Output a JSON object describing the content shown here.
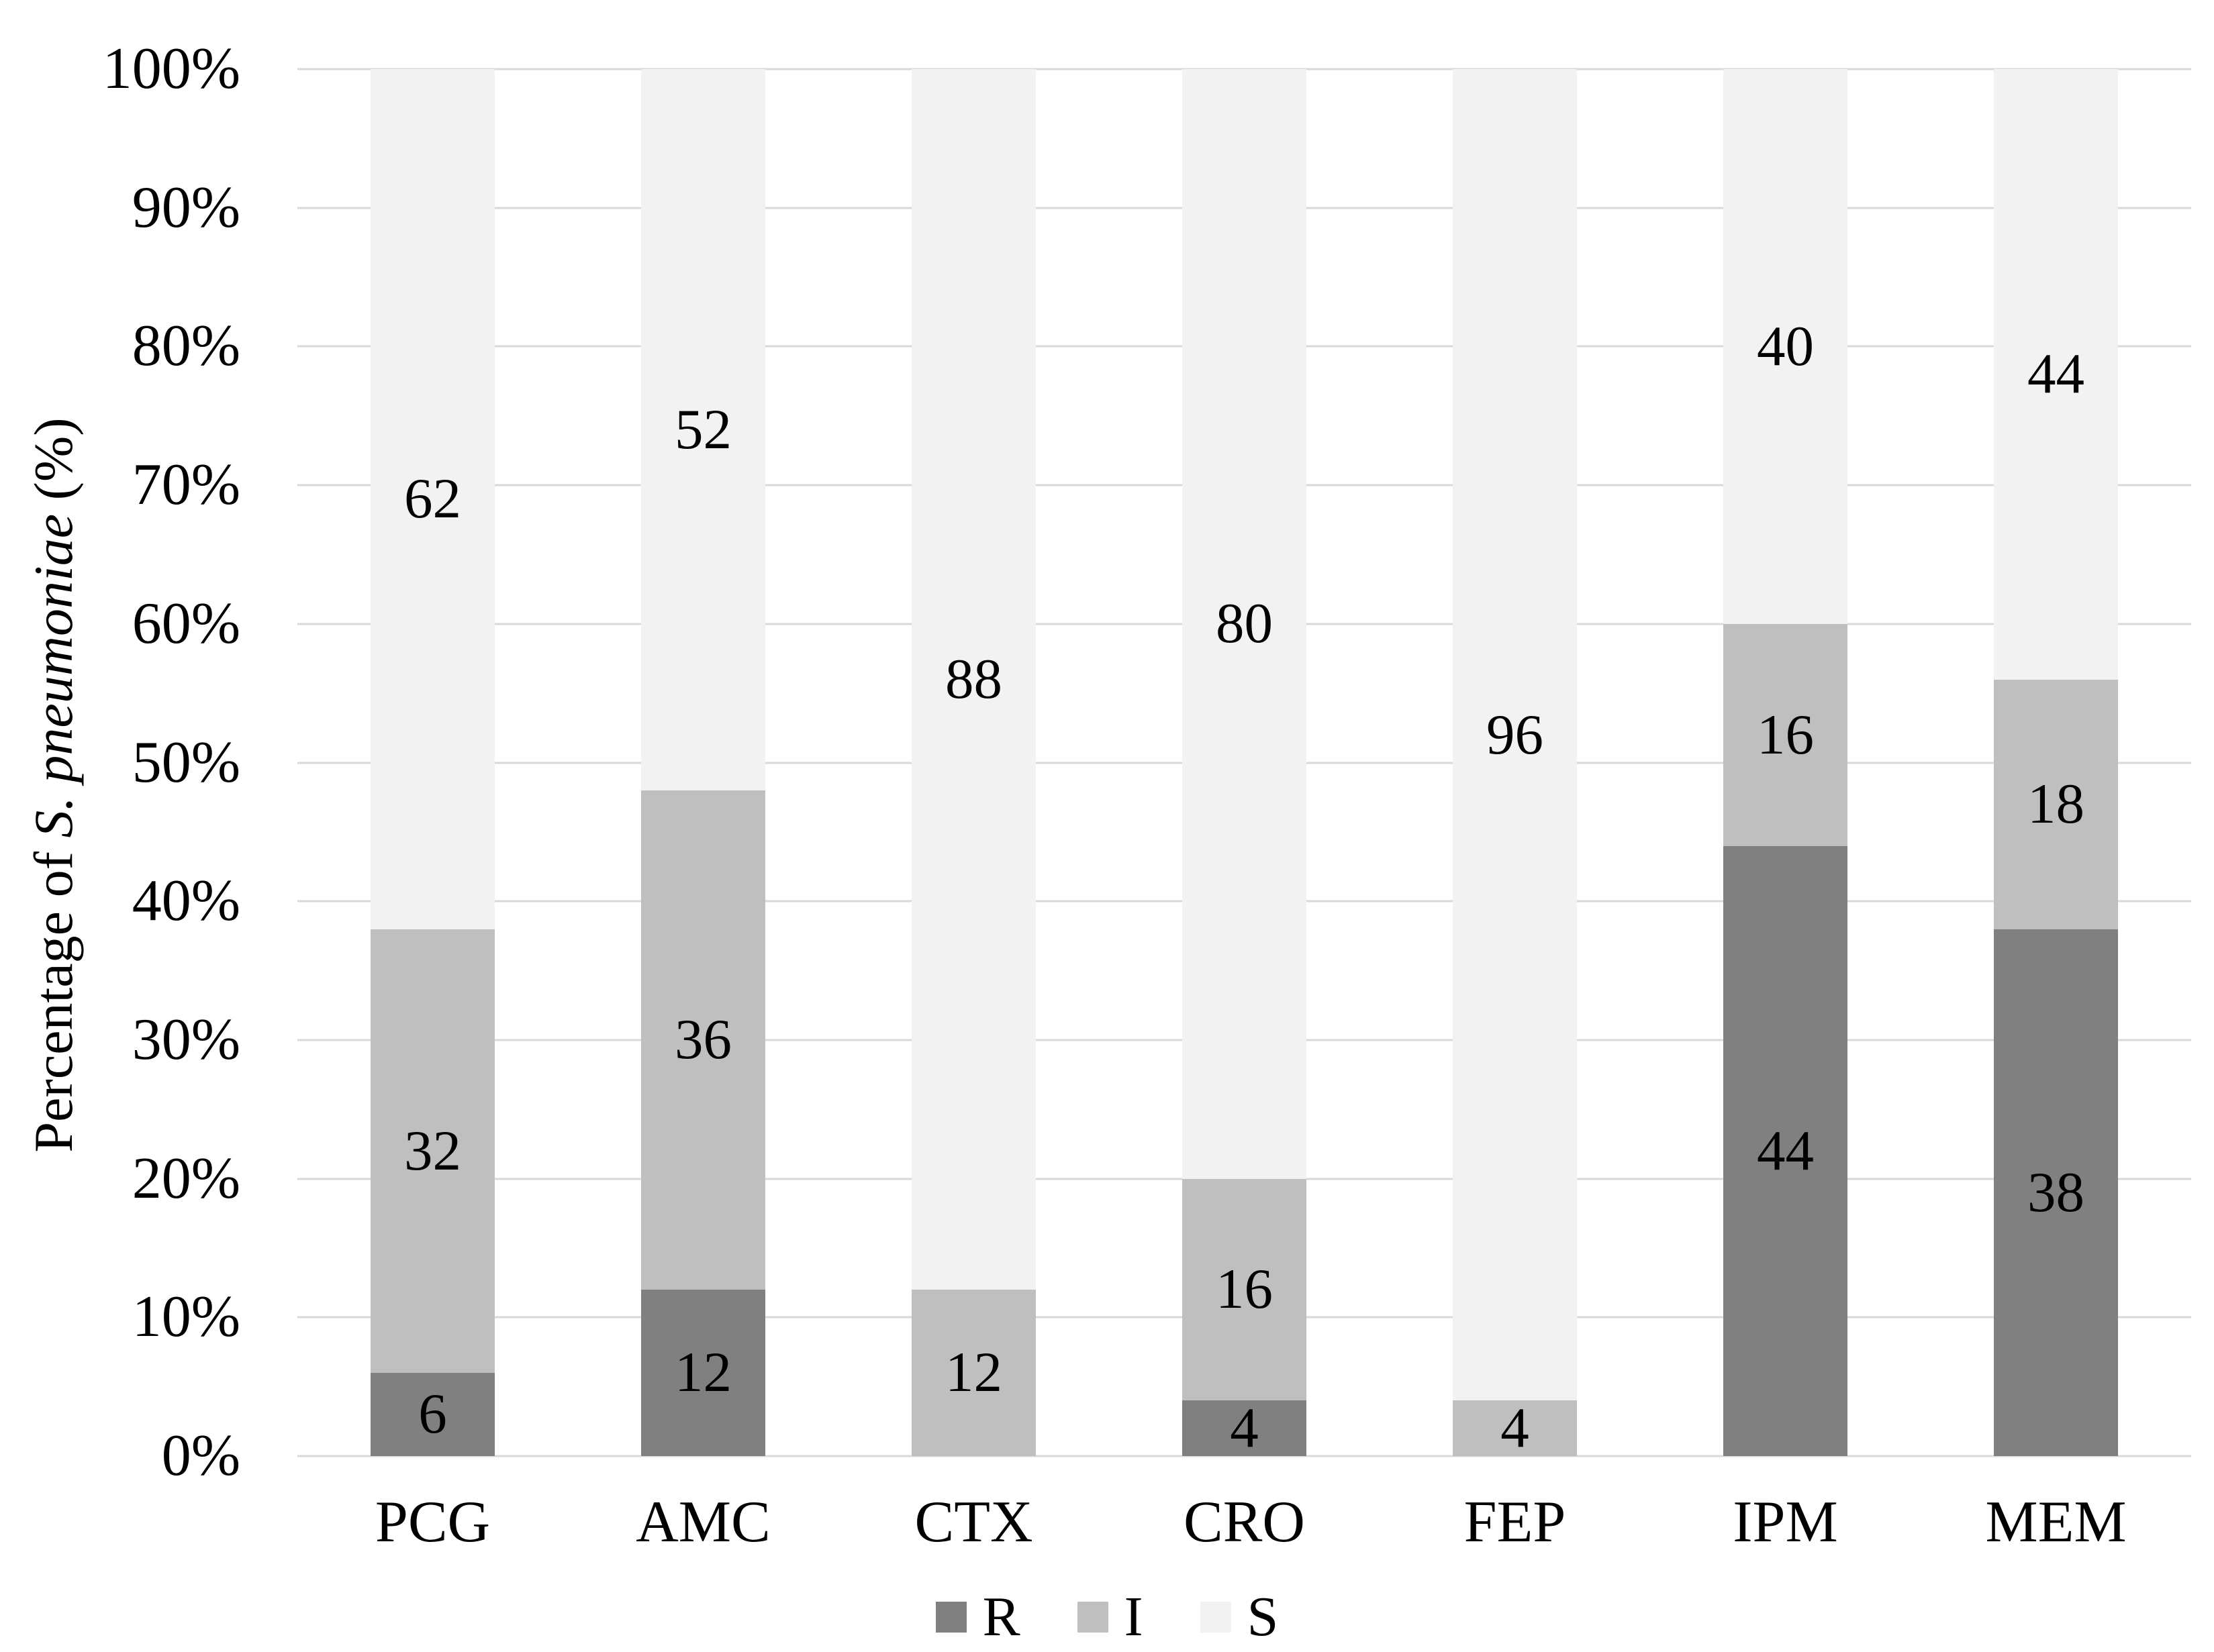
{
  "chart_data": {
    "type": "bar",
    "stacked": true,
    "title": "",
    "categories": [
      "PCG",
      "AMC",
      "CTX",
      "CRO",
      "FEP",
      "IPM",
      "MEM"
    ],
    "series": [
      {
        "name": "R",
        "color": "#808080",
        "values": [
          6,
          12,
          0,
          4,
          0,
          44,
          38
        ]
      },
      {
        "name": "I",
        "color": "#bfbfbf",
        "values": [
          32,
          36,
          12,
          16,
          4,
          16,
          18
        ]
      },
      {
        "name": "S",
        "color": "#f2f2f2",
        "values": [
          62,
          52,
          88,
          80,
          96,
          40,
          44
        ]
      }
    ],
    "xlabel": "",
    "ylabel": "Percentage of S. pneumoniae (%)",
    "ylabel_plain_prefix": "Percentage of ",
    "ylabel_italic": "S. pneumoniae",
    "ylabel_suffix": " (%)",
    "yticks": [
      "0%",
      "10%",
      "20%",
      "30%",
      "40%",
      "50%",
      "60%",
      "70%",
      "80%",
      "90%",
      "100%"
    ],
    "ylim": [
      0,
      100
    ],
    "grid": true,
    "gridline_color": "#d9d9d9",
    "legend_position": "bottom",
    "legend_labels": [
      "R",
      "I",
      "S"
    ],
    "text_color": "#000000",
    "background_color": "#ffffff"
  }
}
